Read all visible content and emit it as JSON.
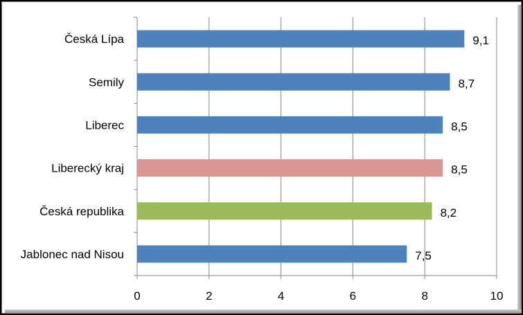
{
  "chart_data": {
    "type": "bar",
    "orientation": "horizontal",
    "title": "",
    "xlabel": "",
    "ylabel": "",
    "xlim": [
      0,
      10
    ],
    "xticks": [
      "0",
      "2",
      "4",
      "6",
      "8",
      "10"
    ],
    "grid": "vertical",
    "legend": "none",
    "categories": [
      "Česká Lípa",
      "Semily",
      "Liberec",
      "Liberecký kraj",
      "Česká republika",
      "Jablonec nad Nisou"
    ],
    "values": [
      9.1,
      8.7,
      8.5,
      8.5,
      8.2,
      7.5
    ],
    "data_labels": [
      "9,1",
      "8,7",
      "8,5",
      "8,5",
      "8,2",
      "7,5"
    ],
    "colors": [
      "#4f81bd",
      "#4f81bd",
      "#4f81bd",
      "#d99694",
      "#9bbb59",
      "#4f81bd"
    ]
  }
}
